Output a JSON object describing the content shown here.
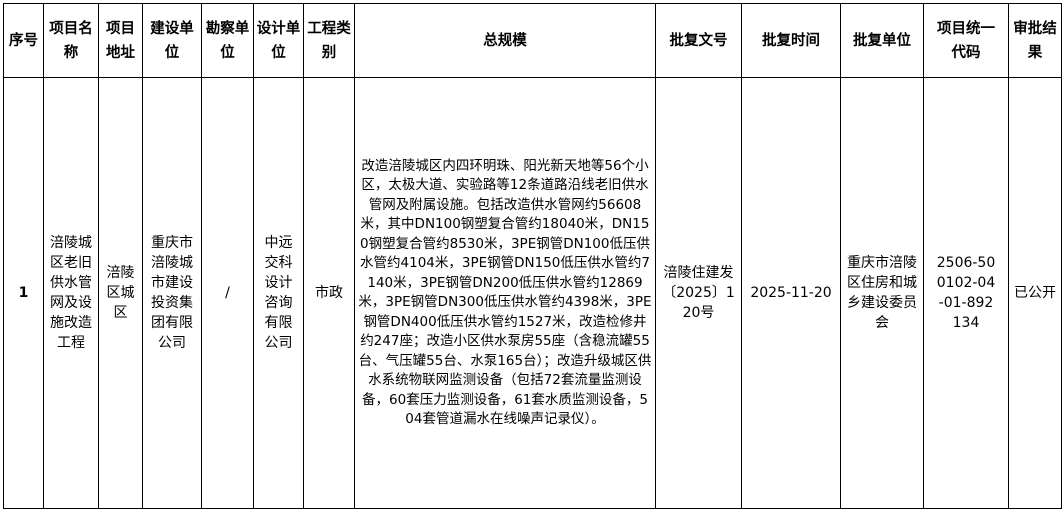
{
  "headers": [
    "序号",
    "项目名称",
    "项目地址",
    "建设单位",
    "勘察单位",
    "设计单位",
    "工程类别",
    "总规模",
    "批复文号",
    "批复时间",
    "批复单位",
    "项目统一代码",
    "审批结果"
  ],
  "row": {
    "index": "1",
    "project_name": "涪陵城区老旧供水管网及设施改造工程",
    "address": "涪陵区城区",
    "builder": "重庆市涪陵城市建设投资集团有限公司",
    "survey_unit": "/",
    "design_unit": "中远交科设计咨询有限公司",
    "category": "市政",
    "scale": "改造涪陵城区内四环明珠、阳光新天地等56个小区，太极大道、实验路等12条道路沿线老旧供水管网及附属设施。包括改造供水管网约56608米，其中DN100钢塑复合管约18040米，DN150钢塑复合管约8530米，3PE钢管DN100低压供水管约4104米，3PE钢管DN150低压供水管约7140米，3PE钢管DN200低压供水管约12869米，3PE钢管DN300低压供水管约4398米，3PE钢管DN400低压供水管约1527米，改造检修井约247座；改造小区供水泵房55座（含稳流罐55台、气压罐55台、水泵165台）；改造升级城区供水系统物联网监测设备（包括72套流量监测设备，60套压力监测设备，61套水质监测设备，504套管道漏水在线噪声记录仪）。",
    "approval_no": "涪陵住建发〔2025〕120号",
    "approval_date": "2025-11-20",
    "approval_unit": "重庆市涪陵区住房和城乡建设委员会",
    "project_code": "2506-500102-04-01-892134",
    "result": "已公开"
  }
}
